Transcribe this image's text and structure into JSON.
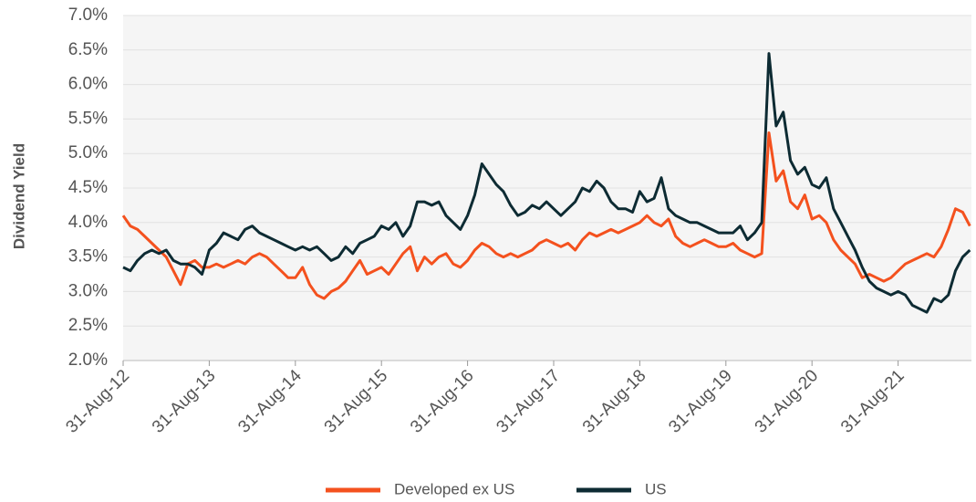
{
  "chart_data": {
    "type": "line",
    "y_label": "Dividend Yield",
    "categories": [
      "31-Aug-12",
      null,
      null,
      null,
      null,
      null,
      null,
      null,
      null,
      null,
      null,
      null,
      "31-Aug-13",
      null,
      null,
      null,
      null,
      null,
      null,
      null,
      null,
      null,
      null,
      null,
      "31-Aug-14",
      null,
      null,
      null,
      null,
      null,
      null,
      null,
      null,
      null,
      null,
      null,
      "31-Aug-15",
      null,
      null,
      null,
      null,
      null,
      null,
      null,
      null,
      null,
      null,
      null,
      "31-Aug-16",
      null,
      null,
      null,
      null,
      null,
      null,
      null,
      null,
      null,
      null,
      null,
      "31-Aug-17",
      null,
      null,
      null,
      null,
      null,
      null,
      null,
      null,
      null,
      null,
      null,
      "31-Aug-18",
      null,
      null,
      null,
      null,
      null,
      null,
      null,
      null,
      null,
      null,
      null,
      "31-Aug-19",
      null,
      null,
      null,
      null,
      null,
      null,
      null,
      null,
      null,
      null,
      null,
      "31-Aug-20",
      null,
      null,
      null,
      null,
      null,
      null,
      null,
      null,
      null,
      null,
      null,
      "31-Aug-21",
      null,
      null,
      null,
      null,
      null,
      null,
      null,
      null,
      null,
      null
    ],
    "series": [
      {
        "name": "Developed ex US",
        "color": "#f4511e",
        "values": [
          4.1,
          3.95,
          3.9,
          3.8,
          3.7,
          3.6,
          3.5,
          3.3,
          3.1,
          3.4,
          3.45,
          3.35,
          3.35,
          3.4,
          3.35,
          3.4,
          3.45,
          3.4,
          3.5,
          3.55,
          3.5,
          3.4,
          3.3,
          3.2,
          3.2,
          3.35,
          3.1,
          2.95,
          2.9,
          3.0,
          3.05,
          3.15,
          3.3,
          3.45,
          3.25,
          3.3,
          3.35,
          3.25,
          3.4,
          3.55,
          3.65,
          3.3,
          3.5,
          3.4,
          3.5,
          3.55,
          3.4,
          3.35,
          3.45,
          3.6,
          3.7,
          3.65,
          3.55,
          3.5,
          3.55,
          3.5,
          3.55,
          3.6,
          3.7,
          3.75,
          3.7,
          3.65,
          3.7,
          3.6,
          3.75,
          3.85,
          3.8,
          3.85,
          3.9,
          3.85,
          3.9,
          3.95,
          4.0,
          4.1,
          4.0,
          3.95,
          4.05,
          3.8,
          3.7,
          3.65,
          3.7,
          3.75,
          3.7,
          3.65,
          3.65,
          3.7,
          3.6,
          3.55,
          3.5,
          3.55,
          5.3,
          4.6,
          4.75,
          4.3,
          4.2,
          4.4,
          4.05,
          4.1,
          4.0,
          3.75,
          3.6,
          3.5,
          3.4,
          3.2,
          3.25,
          3.2,
          3.15,
          3.2,
          3.3,
          3.4,
          3.45,
          3.5,
          3.55,
          3.5,
          3.65,
          3.9,
          4.2,
          4.15,
          3.95
        ]
      },
      {
        "name": "US",
        "color": "#0d2b33",
        "values": [
          3.35,
          3.3,
          3.45,
          3.55,
          3.6,
          3.55,
          3.6,
          3.45,
          3.4,
          3.4,
          3.35,
          3.25,
          3.6,
          3.7,
          3.85,
          3.8,
          3.75,
          3.9,
          3.95,
          3.85,
          3.8,
          3.75,
          3.7,
          3.65,
          3.6,
          3.65,
          3.6,
          3.65,
          3.55,
          3.45,
          3.5,
          3.65,
          3.55,
          3.7,
          3.75,
          3.8,
          3.95,
          3.9,
          4.0,
          3.8,
          3.95,
          4.3,
          4.3,
          4.25,
          4.3,
          4.1,
          4.0,
          3.9,
          4.1,
          4.4,
          4.85,
          4.7,
          4.55,
          4.45,
          4.25,
          4.1,
          4.15,
          4.25,
          4.2,
          4.3,
          4.2,
          4.1,
          4.2,
          4.3,
          4.5,
          4.45,
          4.6,
          4.5,
          4.3,
          4.2,
          4.2,
          4.15,
          4.45,
          4.3,
          4.35,
          4.65,
          4.2,
          4.1,
          4.05,
          4.0,
          4.0,
          3.95,
          3.9,
          3.85,
          3.85,
          3.85,
          3.95,
          3.75,
          3.85,
          4.0,
          6.45,
          5.4,
          5.6,
          4.9,
          4.7,
          4.8,
          4.55,
          4.5,
          4.65,
          4.2,
          4.0,
          3.8,
          3.6,
          3.35,
          3.15,
          3.05,
          3.0,
          2.95,
          3.0,
          2.95,
          2.8,
          2.75,
          2.7,
          2.9,
          2.85,
          2.95,
          3.3,
          3.5,
          3.6
        ]
      }
    ],
    "ylim": [
      2,
      7
    ],
    "yticks": [
      {
        "value": 2,
        "label": "2.0%"
      },
      {
        "value": 2.5,
        "label": "2.5%"
      },
      {
        "value": 3,
        "label": "3.0%"
      },
      {
        "value": 3.5,
        "label": "3.5%"
      },
      {
        "value": 4,
        "label": "4.0%"
      },
      {
        "value": 4.5,
        "label": "4.5%"
      },
      {
        "value": 5,
        "label": "5.0%"
      },
      {
        "value": 5.5,
        "label": "5.5%"
      },
      {
        "value": 6,
        "label": "6.0%"
      },
      {
        "value": 6.5,
        "label": "6.5%"
      },
      {
        "value": 7,
        "label": "7.0%"
      }
    ],
    "grid": true,
    "legend": "bottom"
  }
}
